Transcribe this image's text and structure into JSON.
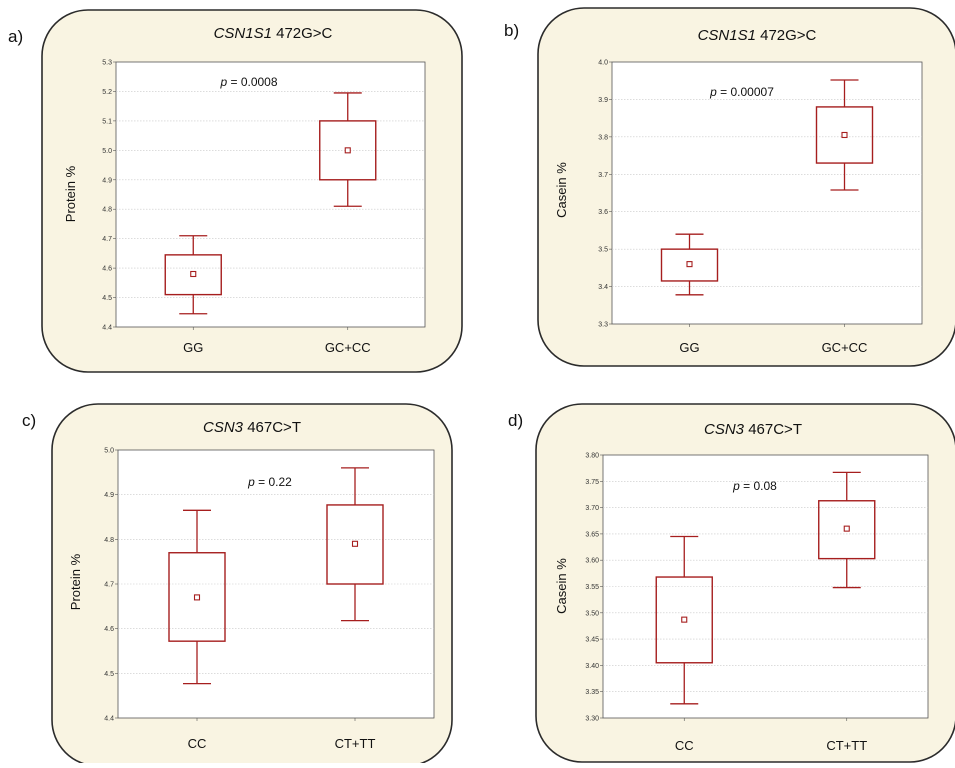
{
  "colors": {
    "panel_fill": "#f9f4e2",
    "panel_stroke": "#2b2b2b",
    "plot_bg": "#ffffff",
    "box_stroke": "#a61e1e",
    "grid": "#c8c8c8"
  },
  "chart_data": [
    {
      "panel_letter": "a)",
      "type": "box",
      "title_gene": "CSN1S1",
      "title_variant": " 472G>C",
      "ylabel": "Protein %",
      "p_prefix": "p",
      "p_value": " = 0.0008",
      "ylim": [
        4.4,
        5.3
      ],
      "yticks": [
        "4.4",
        "4.5",
        "4.6",
        "4.7",
        "4.8",
        "4.9",
        "5.0",
        "5.1",
        "5.2",
        "5.3"
      ],
      "categories": [
        "GG",
        "GC+CC"
      ],
      "boxes": [
        {
          "mean": 4.58,
          "box_low": 4.51,
          "box_high": 4.645,
          "whisker_low": 4.445,
          "whisker_high": 4.71
        },
        {
          "mean": 5.0,
          "box_low": 4.9,
          "box_high": 5.1,
          "whisker_low": 4.81,
          "whisker_high": 5.195
        }
      ],
      "grid": true
    },
    {
      "panel_letter": "b)",
      "type": "box",
      "title_gene": "CSN1S1",
      "title_variant": " 472G>C",
      "ylabel": "Casein %",
      "p_prefix": "p",
      "p_value": " = 0.00007",
      "ylim": [
        3.3,
        4.0
      ],
      "yticks": [
        "3.3",
        "3.4",
        "3.5",
        "3.6",
        "3.7",
        "3.8",
        "3.9",
        "4.0"
      ],
      "categories": [
        "GG",
        "GC+CC"
      ],
      "boxes": [
        {
          "mean": 3.46,
          "box_low": 3.415,
          "box_high": 3.5,
          "whisker_low": 3.378,
          "whisker_high": 3.54
        },
        {
          "mean": 3.805,
          "box_low": 3.73,
          "box_high": 3.88,
          "whisker_low": 3.658,
          "whisker_high": 3.952
        }
      ],
      "grid": true
    },
    {
      "panel_letter": "c)",
      "type": "box",
      "title_gene": "CSN3",
      "title_variant": " 467C>T",
      "ylabel": "Protein %",
      "p_prefix": "p",
      "p_value": " = 0.22",
      "ylim": [
        4.4,
        5.0
      ],
      "yticks": [
        "4.4",
        "4.5",
        "4.6",
        "4.7",
        "4.8",
        "4.9",
        "5.0"
      ],
      "categories": [
        "CC",
        "CT+TT"
      ],
      "boxes": [
        {
          "mean": 4.67,
          "box_low": 4.572,
          "box_high": 4.77,
          "whisker_low": 4.477,
          "whisker_high": 4.865
        },
        {
          "mean": 4.79,
          "box_low": 4.7,
          "box_high": 4.877,
          "whisker_low": 4.618,
          "whisker_high": 4.96
        }
      ],
      "grid": true
    },
    {
      "panel_letter": "d)",
      "type": "box",
      "title_gene": "CSN3",
      "title_variant": " 467C>T",
      "ylabel": "Casein %",
      "p_prefix": "p",
      "p_value": " = 0.08",
      "ylim": [
        3.3,
        3.8
      ],
      "yticks": [
        "3.30",
        "3.35",
        "3.40",
        "3.45",
        "3.50",
        "3.55",
        "3.60",
        "3.65",
        "3.70",
        "3.75",
        "3.80"
      ],
      "categories": [
        "CC",
        "CT+TT"
      ],
      "boxes": [
        {
          "mean": 3.487,
          "box_low": 3.405,
          "box_high": 3.568,
          "whisker_low": 3.327,
          "whisker_high": 3.645
        },
        {
          "mean": 3.66,
          "box_low": 3.603,
          "box_high": 3.713,
          "whisker_low": 3.548,
          "whisker_high": 3.767
        }
      ],
      "grid": true
    }
  ]
}
